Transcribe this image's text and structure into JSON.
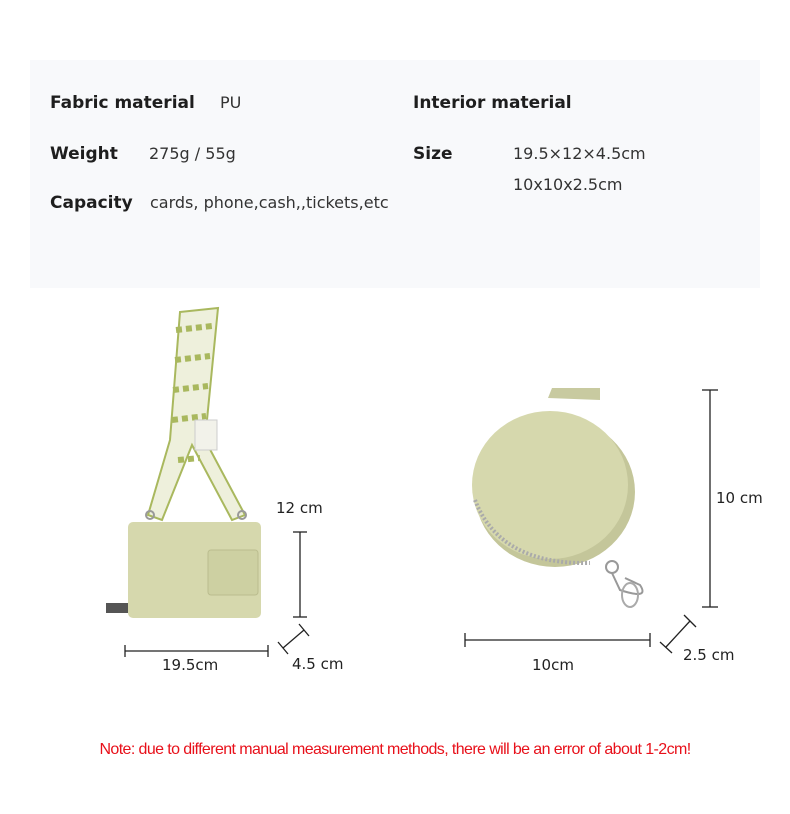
{
  "specs": {
    "fabric_material": {
      "label": "Fabric material",
      "value": "PU"
    },
    "interior_material": {
      "label": "Interior material",
      "value": ""
    },
    "weight": {
      "label": "Weight",
      "value": "275g / 55g"
    },
    "size": {
      "label": "Size",
      "values": [
        "19.5×12×4.5cm",
        "10x10x2.5cm"
      ]
    },
    "capacity": {
      "label": "Capacity",
      "value": "cards, phone,cash,,tickets,etc"
    }
  },
  "dimensions": {
    "crossbody_height": "12 cm",
    "crossbody_width": "19.5cm",
    "crossbody_depth": "4.5 cm",
    "coin_purse_height": "10 cm",
    "coin_purse_width": "10cm",
    "coin_purse_depth": "2.5 cm"
  },
  "note": "Note: due to different manual measurement methods, there will be an error of about 1-2cm!",
  "colors": {
    "bag": "#d6d8ad",
    "strap_green": "#a9b85e",
    "note_red": "#e8101a",
    "spec_bg": "#f8f9fb"
  }
}
